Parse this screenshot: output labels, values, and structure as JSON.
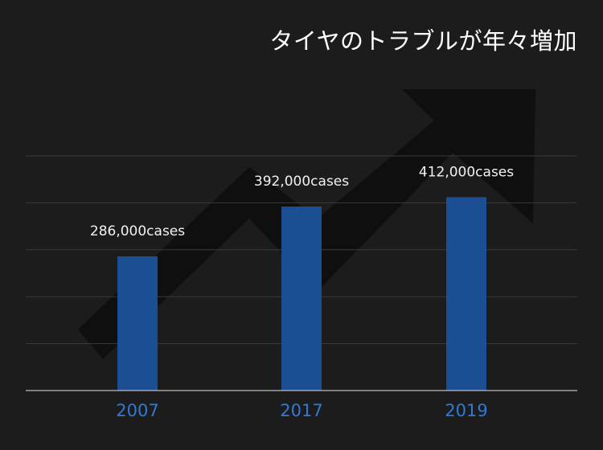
{
  "chart_data": {
    "type": "bar",
    "title": "タイヤのトラブルが年々増加",
    "categories": [
      "2007",
      "2017",
      "2019"
    ],
    "values": [
      286000,
      392000,
      412000
    ],
    "data_labels": [
      "286,000cases",
      "392,000cases",
      "412,000cases"
    ],
    "xlabel": "",
    "ylabel": "",
    "ylim": [
      0,
      500000
    ],
    "grid": true,
    "legend": "none",
    "colors": {
      "background": "#1c1c1c",
      "bar": "#1b4e93",
      "tick_label": "#2f7ad6",
      "data_label": "#f2f2f2",
      "gridline": "#3a3a3a",
      "axis": "#bdbdbd",
      "background_arrow": "#0f0f0f"
    },
    "decoration": "upward-trend-arrow"
  }
}
